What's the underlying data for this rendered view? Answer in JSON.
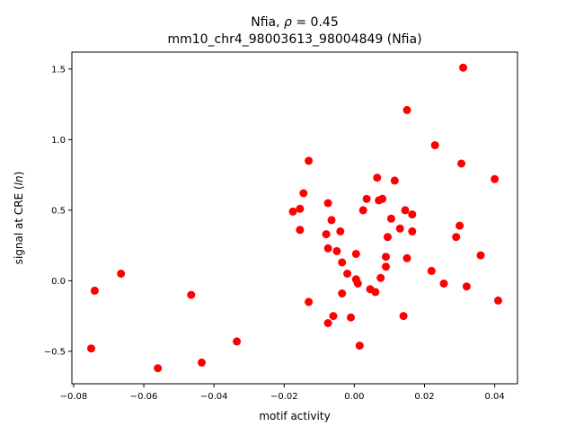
{
  "chart_data": {
    "type": "scatter",
    "title_line1_prefix": "Nfia, ",
    "title_line1_rho": "ρ",
    "title_line1_suffix": " = 0.45",
    "title_line2": "mm10_chr4_98003613_98004849 (Nfia)",
    "xlabel": "motif activity",
    "ylabel_prefix": "signal at CRE (",
    "ylabel_ln": "ln",
    "ylabel_suffix": ")",
    "xlim": [
      -0.0805,
      0.0465
    ],
    "ylim": [
      -0.73,
      1.62
    ],
    "xticks": [
      -0.08,
      -0.06,
      -0.04,
      -0.02,
      0.0,
      0.02,
      0.04
    ],
    "xtick_labels": [
      "−0.08",
      "−0.06",
      "−0.04",
      "−0.02",
      "0.00",
      "0.02",
      "0.04"
    ],
    "yticks": [
      -0.5,
      0.0,
      0.5,
      1.0,
      1.5
    ],
    "ytick_labels": [
      "−0.5",
      "0.0",
      "0.5",
      "1.0",
      "1.5"
    ],
    "marker_color": "#ff0000",
    "grid": false,
    "points": [
      [
        -0.075,
        -0.48
      ],
      [
        -0.074,
        -0.07
      ],
      [
        -0.0665,
        0.05
      ],
      [
        -0.056,
        -0.62
      ],
      [
        -0.0465,
        -0.1
      ],
      [
        -0.0435,
        -0.58
      ],
      [
        -0.0335,
        -0.43
      ],
      [
        -0.0175,
        0.49
      ],
      [
        -0.0155,
        0.51
      ],
      [
        -0.0155,
        0.36
      ],
      [
        -0.0145,
        0.62
      ],
      [
        -0.013,
        0.85
      ],
      [
        -0.013,
        -0.15
      ],
      [
        -0.008,
        0.33
      ],
      [
        -0.0075,
        0.55
      ],
      [
        -0.0075,
        0.23
      ],
      [
        -0.0075,
        -0.3
      ],
      [
        -0.0065,
        0.43
      ],
      [
        -0.006,
        -0.25
      ],
      [
        -0.005,
        0.21
      ],
      [
        -0.004,
        0.35
      ],
      [
        -0.0035,
        0.13
      ],
      [
        -0.0035,
        -0.09
      ],
      [
        -0.002,
        0.05
      ],
      [
        -0.001,
        -0.26
      ],
      [
        0.0005,
        0.19
      ],
      [
        0.0005,
        0.01
      ],
      [
        0.001,
        -0.02
      ],
      [
        0.0015,
        -0.46
      ],
      [
        0.0025,
        0.5
      ],
      [
        0.0035,
        0.58
      ],
      [
        0.0045,
        -0.06
      ],
      [
        0.006,
        -0.08
      ],
      [
        0.0065,
        0.73
      ],
      [
        0.007,
        0.57
      ],
      [
        0.0075,
        0.02
      ],
      [
        0.008,
        0.58
      ],
      [
        0.009,
        0.17
      ],
      [
        0.009,
        0.1
      ],
      [
        0.0095,
        0.31
      ],
      [
        0.0105,
        0.44
      ],
      [
        0.0115,
        0.71
      ],
      [
        0.013,
        0.37
      ],
      [
        0.0145,
        0.5
      ],
      [
        0.014,
        -0.25
      ],
      [
        0.015,
        0.16
      ],
      [
        0.015,
        1.21
      ],
      [
        0.0165,
        0.35
      ],
      [
        0.0165,
        0.47
      ],
      [
        0.022,
        0.07
      ],
      [
        0.023,
        0.96
      ],
      [
        0.0255,
        -0.02
      ],
      [
        0.029,
        0.31
      ],
      [
        0.03,
        0.39
      ],
      [
        0.0305,
        0.83
      ],
      [
        0.031,
        1.51
      ],
      [
        0.032,
        -0.04
      ],
      [
        0.036,
        0.18
      ],
      [
        0.04,
        0.72
      ],
      [
        0.041,
        -0.14
      ]
    ]
  }
}
